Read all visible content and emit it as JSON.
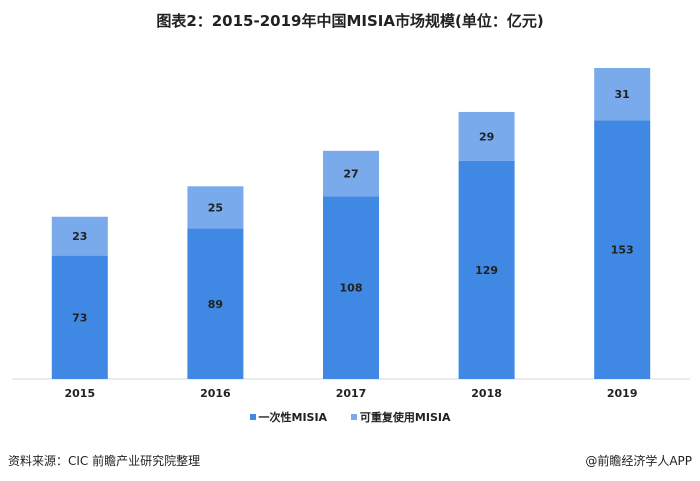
{
  "chart_data": {
    "type": "bar",
    "stacked": true,
    "title": "图表2：2015-2019年中国MISIA市场规模(单位：亿元)",
    "categories": [
      "2015",
      "2016",
      "2017",
      "2018",
      "2019"
    ],
    "series": [
      {
        "name": "一次性MISIA",
        "values": [
          73,
          89,
          108,
          129,
          153
        ],
        "color": "#3f88e3"
      },
      {
        "name": "可重复使用MISIA",
        "values": [
          23,
          25,
          27,
          29,
          31
        ],
        "color": "#78aaec"
      }
    ],
    "ylim": [
      0,
      184
    ],
    "grid": false,
    "legend_position": "bottom"
  },
  "footer": {
    "source": "资料来源：CIC  前瞻产业研究院整理",
    "brand": "@前瞻经济学人APP"
  }
}
